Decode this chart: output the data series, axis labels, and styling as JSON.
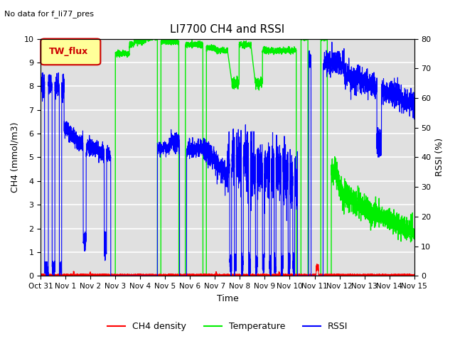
{
  "title": "LI7700 CH4 and RSSI",
  "subtitle": "No data for f_li77_pres",
  "legend_label": "TW_flux",
  "xlabel": "Time",
  "ylabel_left": "CH4 (mmol/m3)",
  "ylabel_right": "RSSI (%)",
  "ylim_left": [
    0.0,
    10.0
  ],
  "ylim_right": [
    0,
    80
  ],
  "yticks_left": [
    0.0,
    1.0,
    2.0,
    3.0,
    4.0,
    5.0,
    6.0,
    7.0,
    8.0,
    9.0,
    10.0
  ],
  "yticks_right": [
    0,
    10,
    20,
    30,
    40,
    50,
    60,
    70,
    80
  ],
  "xtick_labels": [
    "Oct 31",
    "Nov 1",
    "Nov 2",
    "Nov 3",
    "Nov 4",
    "Nov 5",
    "Nov 6",
    "Nov 7",
    "Nov 8",
    "Nov 9",
    "Nov 10",
    "Nov 11",
    "Nov 12",
    "Nov 13",
    "Nov 14",
    "Nov 15"
  ],
  "bg_color": "#e0e0e0",
  "grid_color": "#ffffff",
  "ch4_color": "#ff0000",
  "temp_color": "#00ee00",
  "rssi_color": "#0000ff",
  "legend_box_color": "#ffff99",
  "legend_box_edge": "#cc0000",
  "legend_text_color": "#cc0000",
  "n_days": 16,
  "figsize": [
    6.4,
    4.8
  ],
  "dpi": 100
}
